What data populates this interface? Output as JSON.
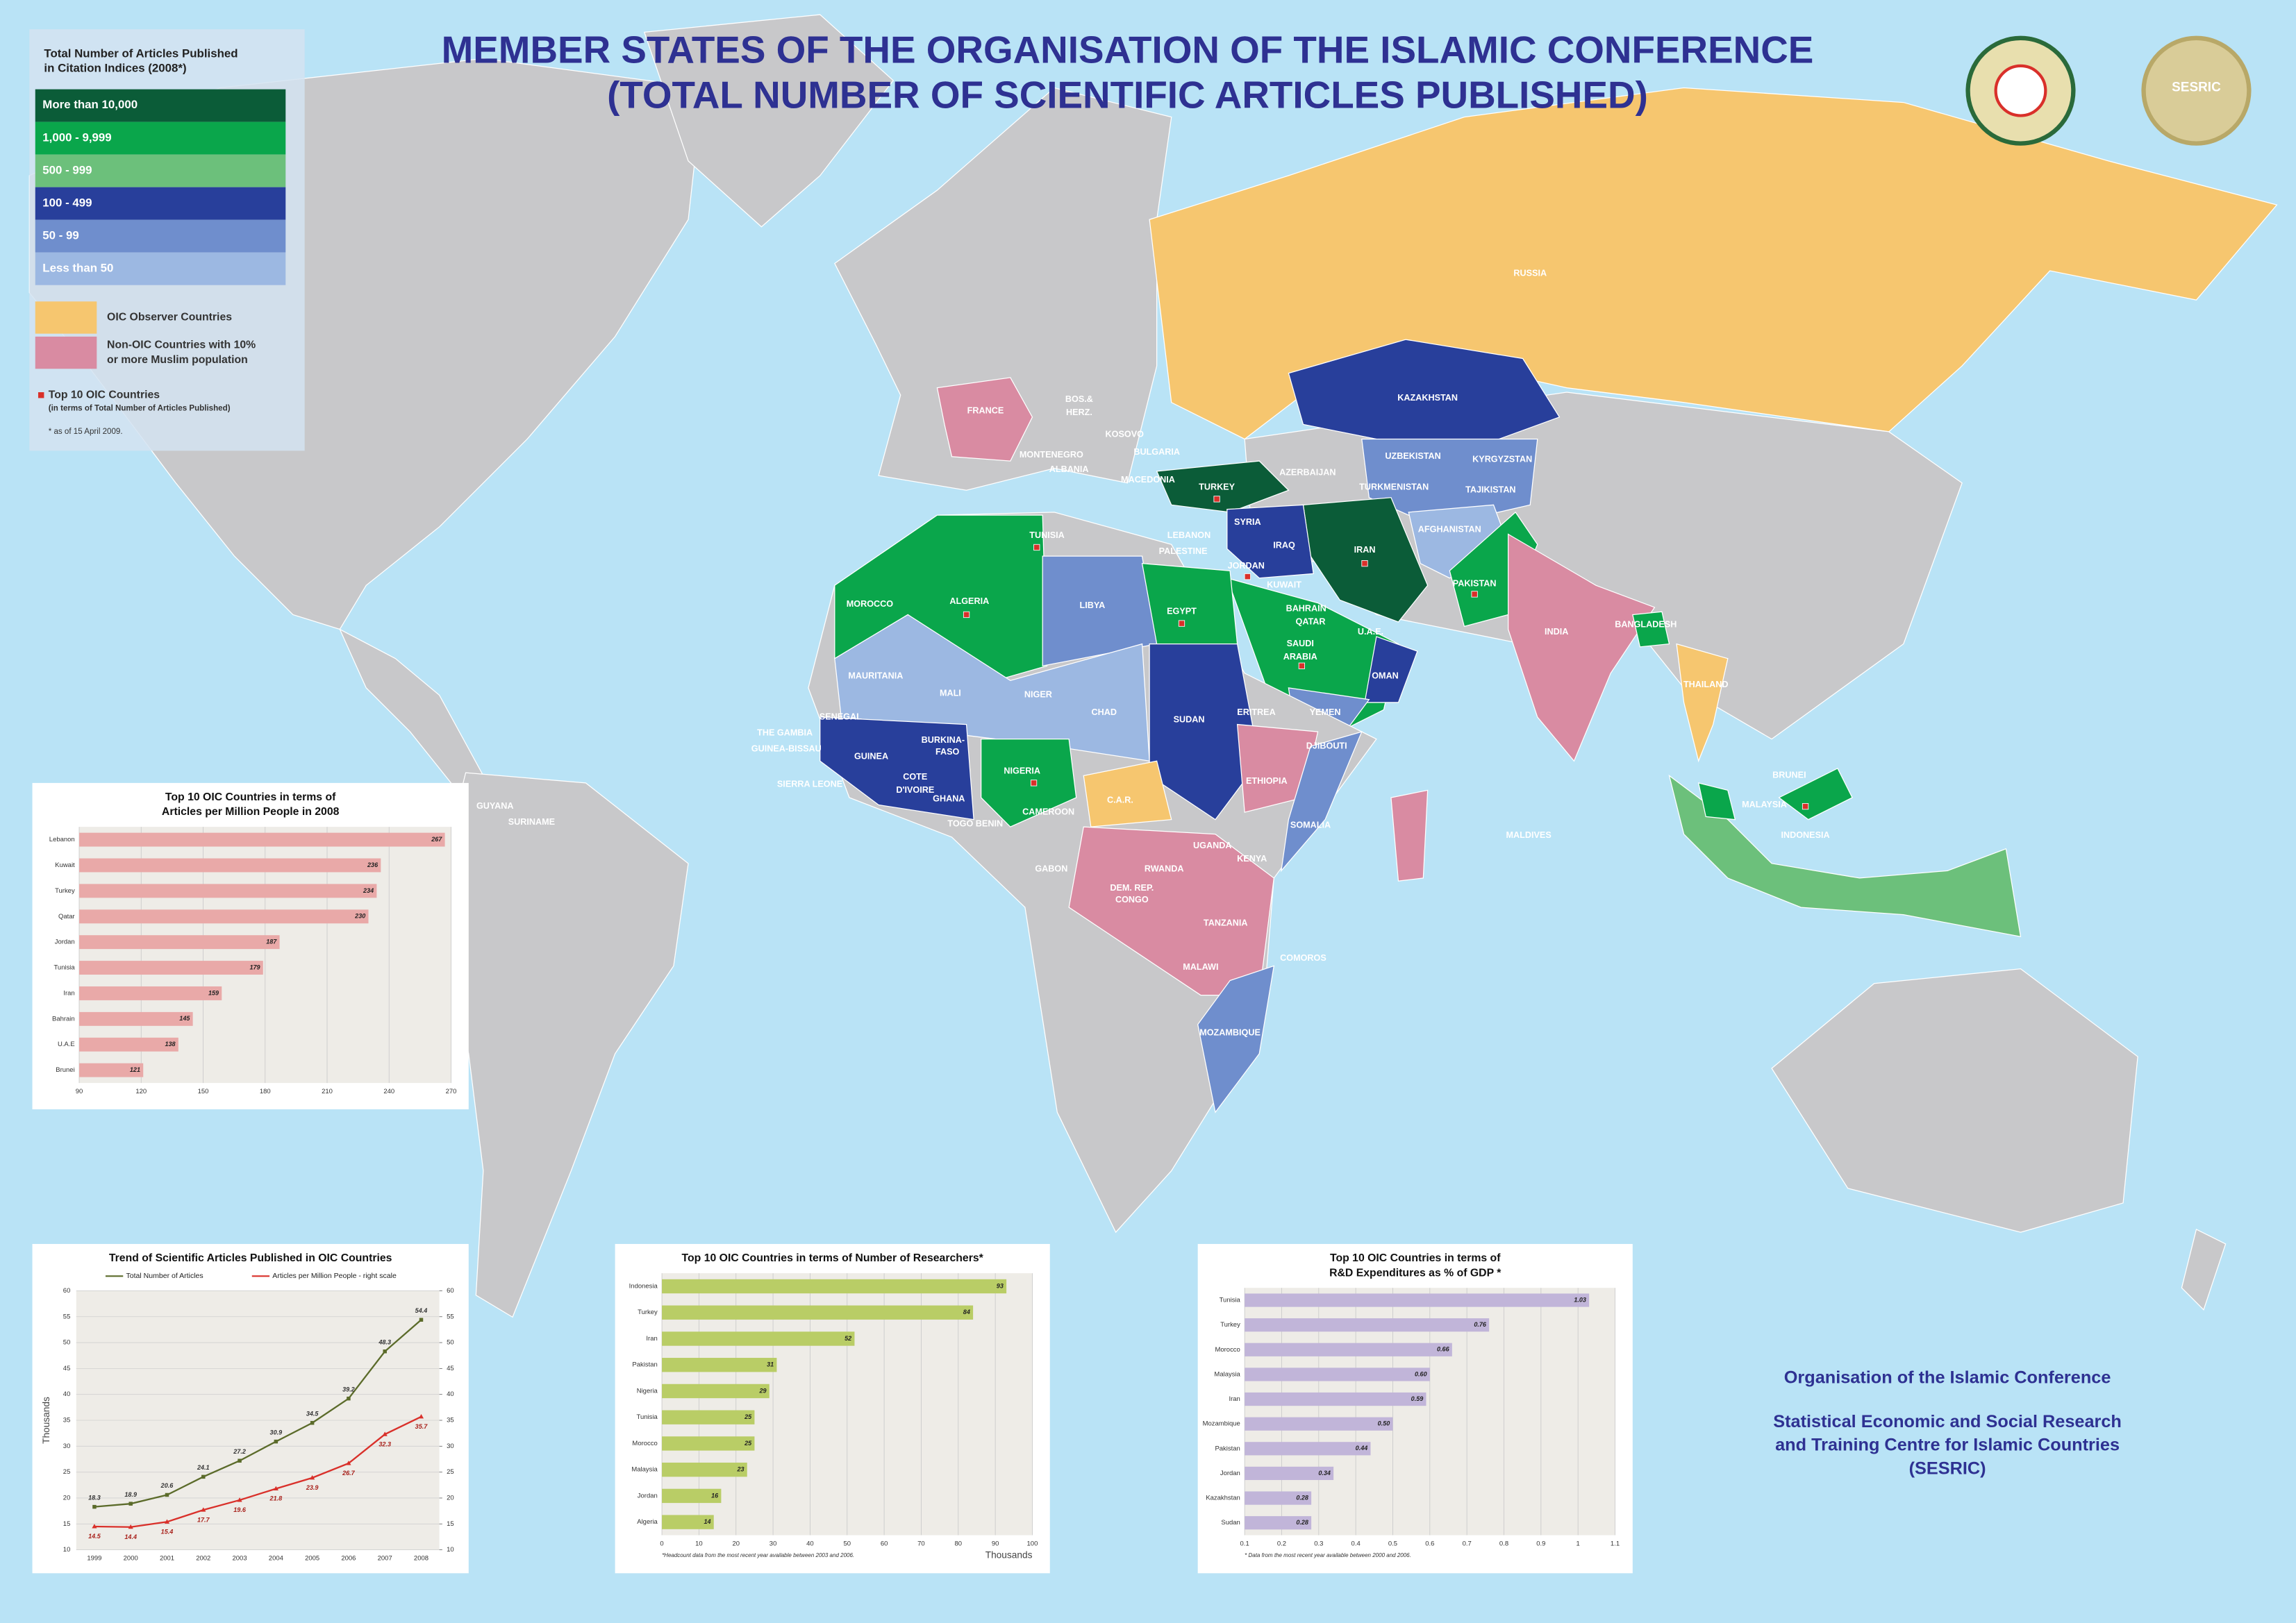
{
  "title": [
    "MEMBER STATES OF THE ORGANISATION OF THE ISLAMIC CONFERENCE",
    "(TOTAL NUMBER OF SCIENTIFIC ARTICLES PUBLISHED)"
  ],
  "logos": {
    "sesric": "SESRIC"
  },
  "legend": {
    "title": [
      "Total Number of Articles Published",
      "in Citation Indices (2008*)"
    ],
    "items": [
      {
        "label": "More than 10,000",
        "color": "#0b5c38"
      },
      {
        "label": "1,000 - 9,999",
        "color": "#0aa64b"
      },
      {
        "label": "500 - 999",
        "color": "#6cc07b"
      },
      {
        "label": "100 - 499",
        "color": "#283f9b"
      },
      {
        "label": "50 - 99",
        "color": "#6f8ecd"
      },
      {
        "label": "Less than 50",
        "color": "#9cb8e2"
      }
    ],
    "other_items": [
      {
        "label": "OIC Observer Countries",
        "color": "#f6c66f"
      },
      {
        "label": [
          "Non-OIC Countries with 10%",
          "or more Muslim population"
        ],
        "color": "#d98ba2"
      }
    ],
    "top10": {
      "label": "Top 10 OIC Countries",
      "note": "(in terms of Total Number of Articles Published)",
      "color": "#d9302a"
    },
    "footnote": "* as of 15 April 2009."
  },
  "map": {
    "labels": [
      "RUSSIA",
      "KAZAKHSTAN",
      "FRANCE",
      "BOS.&",
      "HERZ.",
      "KOSOVO",
      "BULGARIA",
      "MONTENEGRO",
      "ALBANIA",
      "MACEDONIA",
      "TURKEY",
      "AZERBAIJAN",
      "UZBEKISTAN",
      "KYRGYZSTAN",
      "TURKMENISTAN",
      "TAJIKISTAN",
      "SYRIA",
      "LEBANON",
      "PALESTINE",
      "IRAQ",
      "IRAN",
      "JORDAN",
      "AFGHANISTAN",
      "TUNISIA",
      "KUWAIT",
      "PAKISTAN",
      "BAHRAIN",
      "QATAR",
      "U.A.E.",
      "INDIA",
      "BANGLADESH",
      "MOROCCO",
      "ALGERIA",
      "LIBYA",
      "EGYPT",
      "SAUDI",
      "ARABIA",
      "OMAN",
      "THAILAND",
      "MAURITANIA",
      "MALI",
      "NIGER",
      "CHAD",
      "SUDAN",
      "ERITREA",
      "YEMEN",
      "SENEGAL",
      "THE GAMBIA",
      "GUINEA-BISSAU",
      "GUINEA",
      "BURKINA-",
      "FASO",
      "DJIBOUTI",
      "NIGERIA",
      "SIERRA LEONE",
      "COTE",
      "D'IVOIRE",
      "ETHIOPIA",
      "BRUNEI",
      "MALAYSIA",
      "GHANA",
      "GUYANA",
      "CAMEROON",
      "C.A.R.",
      "SURINAME",
      "TOGO BENIN",
      "SOMALIA",
      "INDONESIA",
      "MALDIVES",
      "UGANDA",
      "KENYA",
      "RWANDA",
      "GABON",
      "DEM. REP.",
      "CONGO",
      "TANZANIA",
      "COMOROS",
      "MALAWI",
      "MOZAMBIQUE"
    ]
  },
  "footer": [
    "Organisation of the Islamic Conference",
    "Statistical Economic and Social Research",
    "and Training Centre for Islamic Countries",
    "(SESRIC)"
  ],
  "chart_data": [
    {
      "type": "bar",
      "title": [
        "Top 10 OIC Countries in terms of",
        "Articles per Million People in 2008"
      ],
      "categories": [
        "Lebanon",
        "Kuwait",
        "Turkey",
        "Qatar",
        "Jordan",
        "Tunisia",
        "Iran",
        "Bahrain",
        "U.A.E",
        "Brunei"
      ],
      "values": [
        267,
        236,
        234,
        230,
        187,
        179,
        159,
        145,
        138,
        121
      ],
      "color": "#e9a9a8",
      "xlim": [
        90,
        270
      ],
      "xticks": [
        90,
        120,
        150,
        180,
        210,
        240,
        270
      ],
      "grid": true
    },
    {
      "type": "line",
      "title": "Trend of Scientific Articles Published in OIC Countries",
      "categories": [
        "1999",
        "2000",
        "2001",
        "2002",
        "2003",
        "2004",
        "2005",
        "2006",
        "2007",
        "2008"
      ],
      "series": [
        {
          "name": "Total Number of Articles",
          "color": "#5b6b2a",
          "values": [
            18.3,
            18.9,
            20.6,
            24.1,
            27.2,
            30.9,
            34.5,
            39.2,
            48.3,
            54.4
          ]
        },
        {
          "name": "Articles per Million People - right scale",
          "color": "#d9302a",
          "axis": "y2",
          "values": [
            14.5,
            14.4,
            15.4,
            17.7,
            19.6,
            21.8,
            23.9,
            26.7,
            32.3,
            35.7
          ]
        }
      ],
      "ylabel": "Thousands",
      "ylim": [
        10,
        60
      ],
      "yticks": [
        10,
        15,
        20,
        25,
        30,
        35,
        40,
        45,
        50,
        55,
        60
      ],
      "y2lim": [
        10,
        60
      ],
      "y2ticks": [
        10,
        15,
        20,
        25,
        30,
        35,
        40,
        45,
        50,
        55,
        60
      ],
      "grid": true
    },
    {
      "type": "bar",
      "title": [
        "Top 10 OIC Countries in terms of Number of Researchers*"
      ],
      "categories": [
        "Indonesia",
        "Turkey",
        "Iran",
        "Pakistan",
        "Nigeria",
        "Tunisia",
        "Morocco",
        "Malaysia",
        "Jordan",
        "Algeria"
      ],
      "values": [
        93,
        84,
        52,
        31,
        29,
        25,
        25,
        23,
        16,
        14
      ],
      "color": "#b9cd66",
      "xlabel": "Thousands",
      "xlim": [
        0,
        100
      ],
      "xticks": [
        0,
        10,
        20,
        30,
        40,
        50,
        60,
        70,
        80,
        90,
        100
      ],
      "grid": true,
      "footnote": "*Headcount data from the most recent year available between 2003 and 2006."
    },
    {
      "type": "bar",
      "title": [
        "Top 10 OIC Countries in terms of",
        "R&D Expenditures as % of GDP *"
      ],
      "categories": [
        "Tunisia",
        "Turkey",
        "Morocco",
        "Malaysia",
        "Iran",
        "Mozambique",
        "Pakistan",
        "Jordan",
        "Kazakhstan",
        "Sudan"
      ],
      "values": [
        1.03,
        0.76,
        0.66,
        0.6,
        0.59,
        0.5,
        0.44,
        0.34,
        0.28,
        0.28
      ],
      "value_labels": [
        "1.03",
        "0.76",
        "0.66",
        "0.60",
        "0.59",
        "0.50",
        "0.44",
        "0.34",
        "0.28",
        "0.28"
      ],
      "color": "#c1b5d9",
      "xlim": [
        0.1,
        1.1
      ],
      "xticks": [
        0.1,
        0.2,
        0.3,
        0.4,
        0.5,
        0.6,
        0.7,
        0.8,
        0.9,
        1,
        1.1
      ],
      "grid": true,
      "footnote": "* Data from the most recent year available between 2000 and 2006."
    }
  ]
}
